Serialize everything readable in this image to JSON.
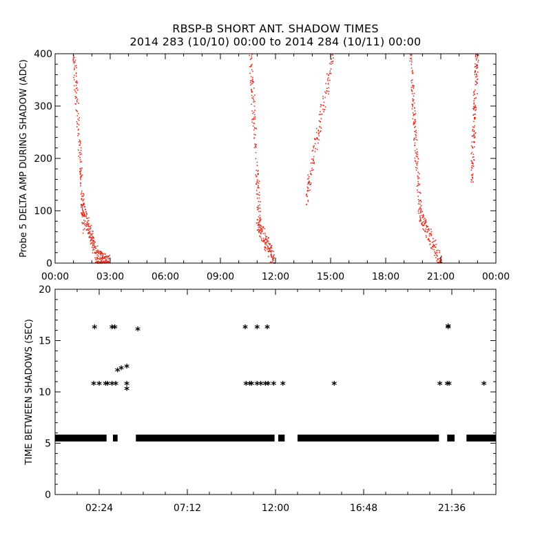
{
  "title_line1": "RBSP-B SHORT ANT. SHADOW TIMES",
  "title_line2": "2014 283 (10/10) 00:00 to 2014 284 (10/11) 00:00",
  "colors": {
    "points_top": "#e0301e",
    "points_bottom": "#000000",
    "axis": "#000000"
  },
  "chart_data": [
    {
      "type": "scatter",
      "title": "",
      "ylabel": "Probe 5 DELTA AMP DURING SHADOW (ADC)",
      "xlabel": "",
      "xlim": [
        0,
        24
      ],
      "ylim": [
        0,
        400
      ],
      "xticks": [
        "00:00",
        "03:00",
        "06:00",
        "09:00",
        "12:00",
        "15:00",
        "18:00",
        "21:00",
        "00:00"
      ],
      "yticks": [
        "0",
        "100",
        "200",
        "300",
        "400"
      ],
      "grid": false,
      "series": [
        {
          "segments": [
            {
              "x0": 1.0,
              "x1": 1.55,
              "y0": 400,
              "y1": 60
            },
            {
              "x0": 1.45,
              "x1": 2.2,
              "y0": 110,
              "y1": 20
            },
            {
              "x0": 2.2,
              "x1": 2.9,
              "y0": 12,
              "y1": 2
            },
            {
              "x0": 10.6,
              "x1": 11.15,
              "y0": 400,
              "y1": 60
            },
            {
              "x0": 11.0,
              "x1": 11.9,
              "y0": 80,
              "y1": 5
            },
            {
              "x0": 13.6,
              "x1": 15.1,
              "y0": 120,
              "y1": 400
            },
            {
              "x0": 19.3,
              "x1": 19.85,
              "y0": 400,
              "y1": 100
            },
            {
              "x0": 19.8,
              "x1": 21.0,
              "y0": 95,
              "y1": 3
            },
            {
              "x0": 22.65,
              "x1": 22.95,
              "y0": 160,
              "y1": 400
            }
          ]
        }
      ]
    },
    {
      "type": "scatter",
      "title": "",
      "ylabel": "TIME BETWEEN SHADOWS (SEC)",
      "xlabel": "",
      "xlim": [
        0,
        24
      ],
      "ylim": [
        0,
        20
      ],
      "xticks": [
        "02:24",
        "07:12",
        "12:00",
        "16:48",
        "21:36"
      ],
      "xtick_values": [
        2.4,
        7.2,
        12.0,
        16.8,
        21.6
      ],
      "yticks": [
        "0",
        "5",
        "10",
        "15",
        "20"
      ],
      "grid": false,
      "series": [
        {
          "baseline_value": 5.5,
          "baseline_ranges": [
            [
              0.0,
              2.8
            ],
            [
              3.15,
              3.4
            ],
            [
              4.4,
              11.95
            ],
            [
              12.15,
              12.5
            ],
            [
              13.2,
              20.9
            ],
            [
              21.35,
              21.75
            ],
            [
              22.4,
              24.0
            ]
          ],
          "points": [
            [
              2.15,
              16.3
            ],
            [
              3.1,
              16.3
            ],
            [
              3.25,
              16.3
            ],
            [
              4.5,
              16.1
            ],
            [
              10.35,
              16.3
            ],
            [
              11.0,
              16.3
            ],
            [
              11.55,
              16.3
            ],
            [
              21.4,
              16.3
            ],
            [
              21.4,
              16.4
            ],
            [
              3.4,
              12.1
            ],
            [
              3.6,
              12.3
            ],
            [
              3.9,
              12.5
            ],
            [
              3.9,
              10.3
            ],
            [
              2.1,
              10.8
            ],
            [
              2.4,
              10.8
            ],
            [
              2.75,
              10.8
            ],
            [
              2.85,
              10.8
            ],
            [
              3.1,
              10.8
            ],
            [
              3.3,
              10.8
            ],
            [
              3.9,
              10.8
            ],
            [
              10.4,
              10.8
            ],
            [
              10.6,
              10.8
            ],
            [
              10.7,
              10.8
            ],
            [
              11.0,
              10.8
            ],
            [
              11.2,
              10.8
            ],
            [
              11.45,
              10.8
            ],
            [
              11.6,
              10.8
            ],
            [
              11.9,
              10.8
            ],
            [
              12.4,
              10.8
            ],
            [
              15.2,
              10.8
            ],
            [
              20.95,
              10.8
            ],
            [
              21.35,
              10.8
            ],
            [
              21.45,
              10.8
            ],
            [
              23.35,
              10.8
            ]
          ]
        }
      ]
    }
  ]
}
